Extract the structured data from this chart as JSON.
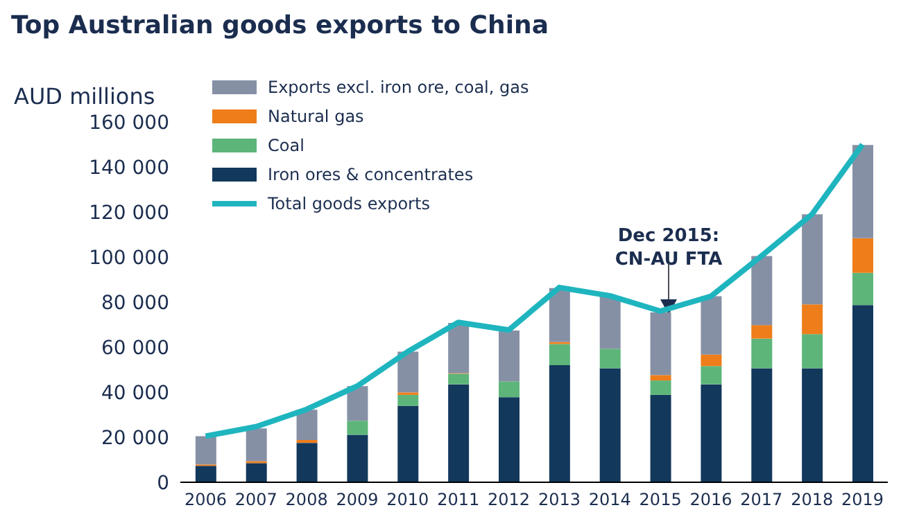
{
  "chart_data": {
    "type": "bar",
    "stacked": true,
    "title": "Top Australian goods exports to China",
    "ylabel": "AUD millions",
    "categories": [
      "2006",
      "2007",
      "2008",
      "2009",
      "2010",
      "2011",
      "2012",
      "2013",
      "2014",
      "2015",
      "2016",
      "2017",
      "2018",
      "2019"
    ],
    "series": [
      {
        "name": "Iron ores & concentrates",
        "color": "#12385c",
        "values": [
          7300,
          8500,
          17500,
          21100,
          33900,
          43500,
          37800,
          52000,
          50600,
          38800,
          43500,
          50600,
          50600,
          78700
        ]
      },
      {
        "name": "Coal",
        "color": "#5db57a",
        "values": [
          0,
          0,
          0,
          6200,
          4900,
          4700,
          7000,
          9400,
          8700,
          6400,
          8100,
          13200,
          15200,
          14300
        ]
      },
      {
        "name": "Natural gas",
        "color": "#ee7d1a",
        "values": [
          600,
          900,
          1300,
          0,
          1100,
          300,
          0,
          900,
          0,
          2400,
          5100,
          6000,
          13200,
          15400
        ]
      },
      {
        "name": "Exports excl. iron ore, coal, gas",
        "color": "#8690a5",
        "values": [
          12600,
          14500,
          13400,
          15400,
          18100,
          22300,
          22600,
          23900,
          23300,
          27900,
          25900,
          30700,
          40000,
          41400
        ]
      },
      {
        "name": "Total goods exports",
        "type": "line",
        "color": "#1fb5bf",
        "values": [
          20500,
          24700,
          32400,
          42700,
          58000,
          71000,
          67600,
          86500,
          82800,
          76000,
          82600,
          100500,
          119000,
          150000
        ]
      }
    ],
    "ylim": [
      0,
      160000
    ],
    "yticks": [
      {
        "value": 0,
        "label": "0"
      },
      {
        "value": 20000,
        "label": "20 000"
      },
      {
        "value": 40000,
        "label": "40 000"
      },
      {
        "value": 60000,
        "label": "60 000"
      },
      {
        "value": 80000,
        "label": "80 000"
      },
      {
        "value": 100000,
        "label": "100 000"
      },
      {
        "value": 120000,
        "label": "120 000"
      },
      {
        "value": 140000,
        "label": "140 000"
      },
      {
        "value": 160000,
        "label": "160 000"
      }
    ],
    "grid": false,
    "legend": "top left",
    "marker": "none",
    "line_style": "solid",
    "annotations": [
      "Dec 2015:\nCN-AU FTA"
    ]
  }
}
